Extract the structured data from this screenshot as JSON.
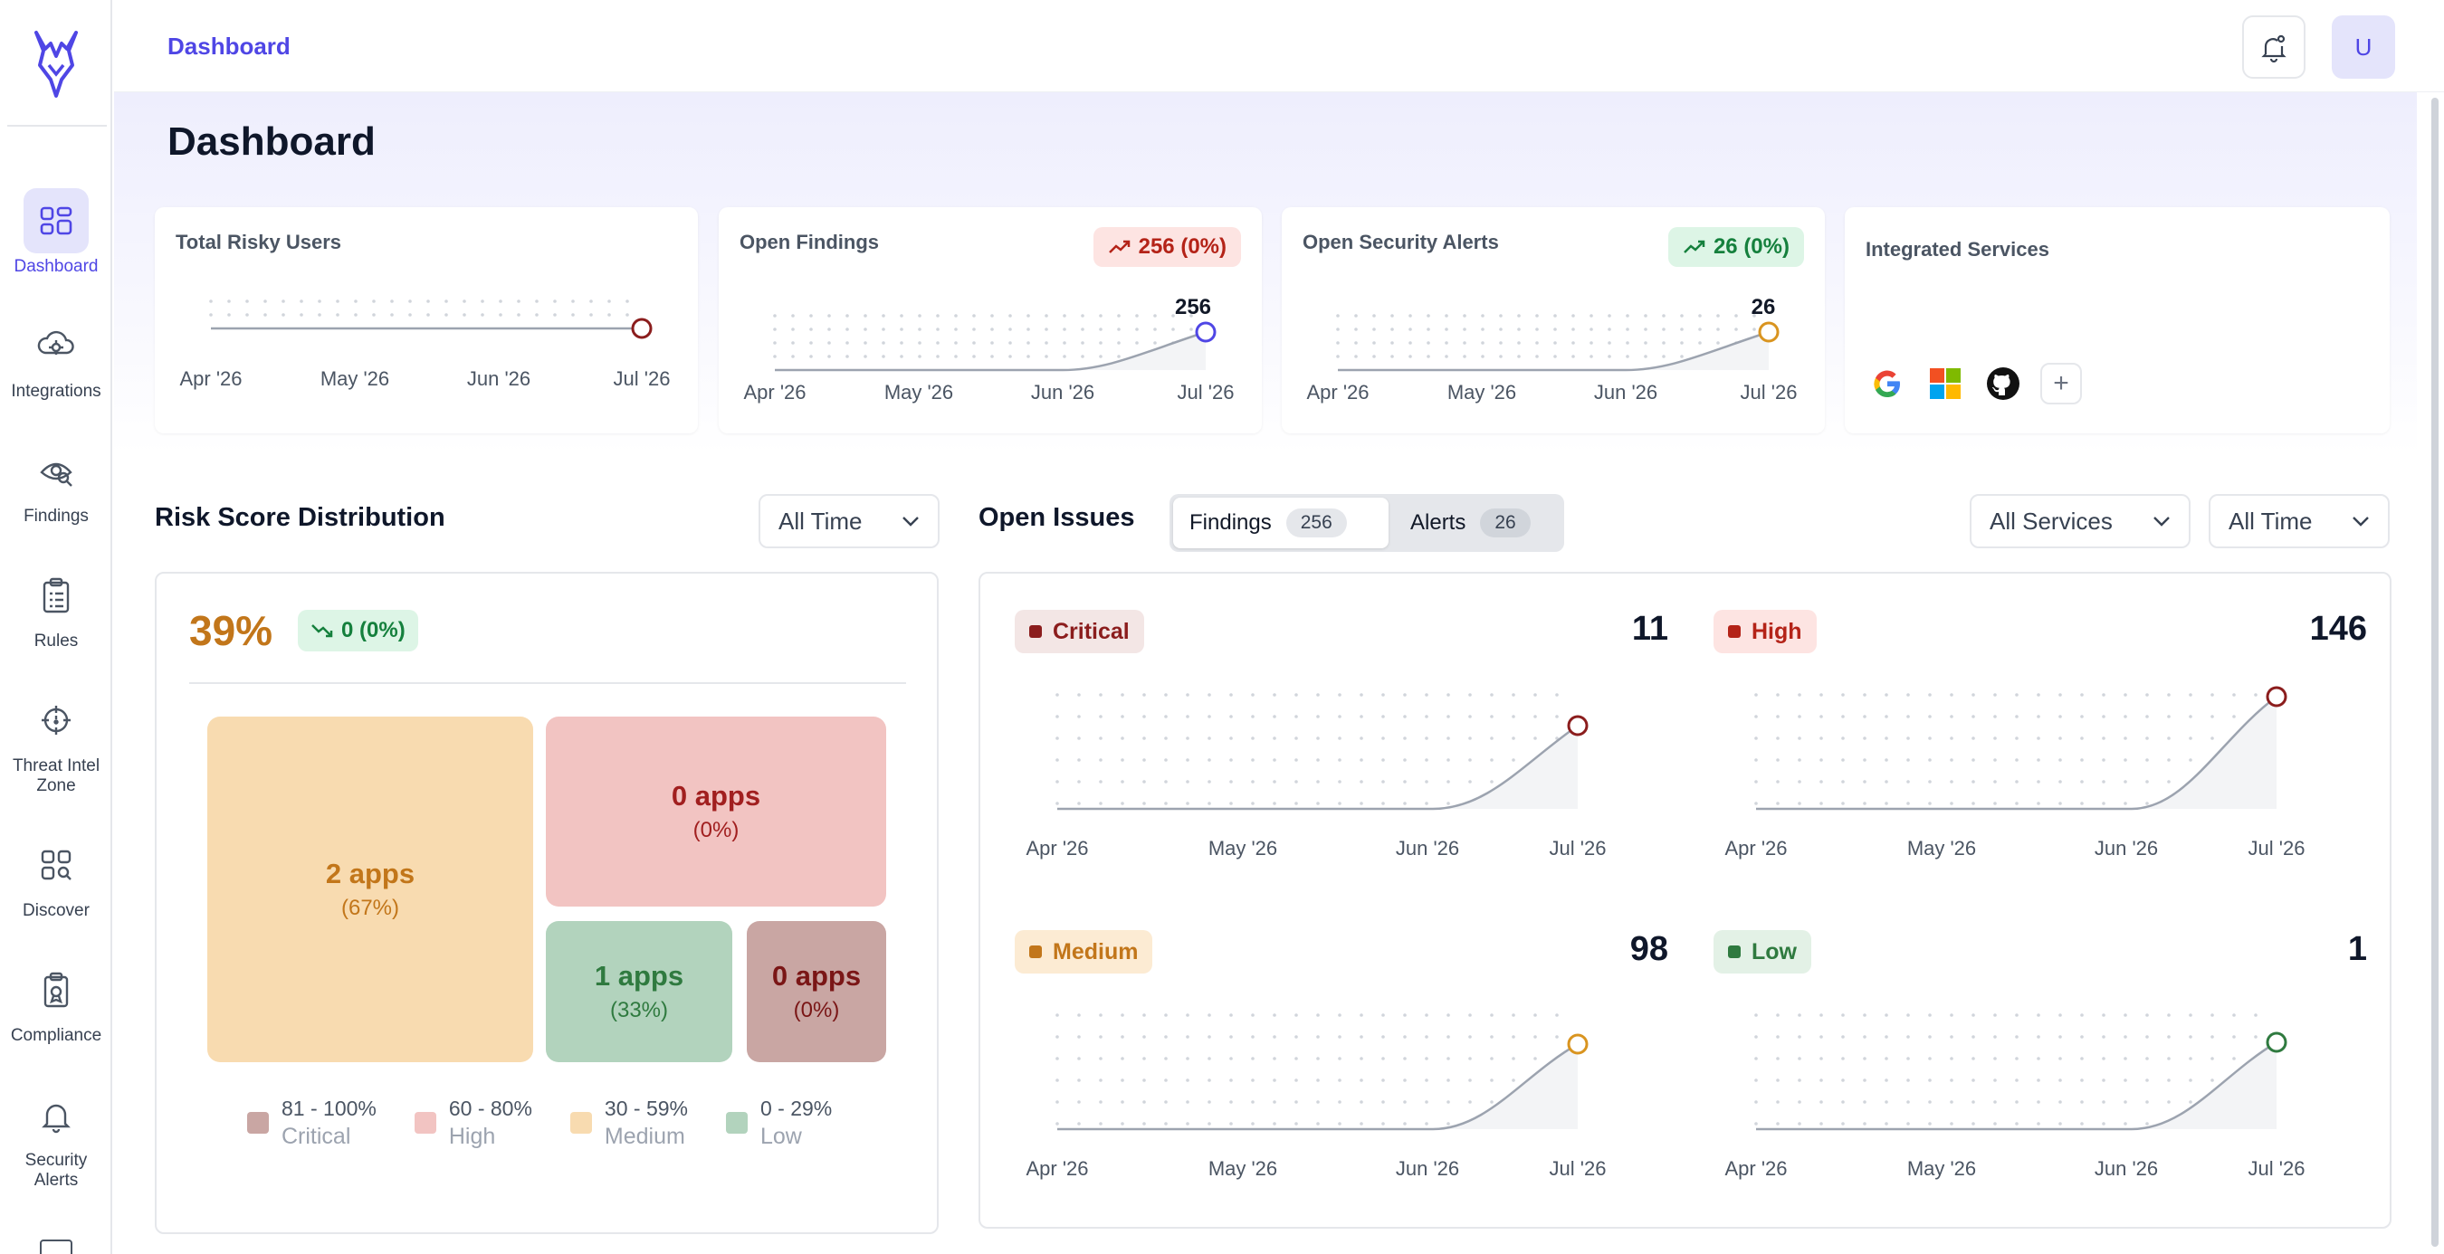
{
  "sidebar": {
    "items": [
      {
        "label": "Dashboard",
        "icon": "dashboard-icon"
      },
      {
        "label": "Integrations",
        "icon": "integrations-icon"
      },
      {
        "label": "Findings",
        "icon": "findings-icon"
      },
      {
        "label": "Rules",
        "icon": "rules-icon"
      },
      {
        "label": "Threat Intel Zone",
        "label_line1": "Threat Intel",
        "label_line2": "Zone",
        "icon": "crosshair-icon"
      },
      {
        "label": "Discover",
        "icon": "discover-icon"
      },
      {
        "label": "Compliance",
        "icon": "compliance-icon"
      },
      {
        "label": "Security Alerts",
        "label_line1": "Security",
        "label_line2": "Alerts",
        "icon": "bell-icon"
      }
    ]
  },
  "topbar": {
    "breadcrumb": "Dashboard",
    "avatar_initial": "U"
  },
  "page": {
    "title": "Dashboard"
  },
  "stats": {
    "risky_users": {
      "title": "Total Risky Users",
      "months": [
        "Apr '26",
        "May '26",
        "Jun '26",
        "Jul '26"
      ]
    },
    "open_findings": {
      "title": "Open Findings",
      "badge": "256 (0%)",
      "value_label": "256",
      "months": [
        "Apr '26",
        "May '26",
        "Jun '26",
        "Jul '26"
      ]
    },
    "open_alerts": {
      "title": "Open Security Alerts",
      "badge": "26 (0%)",
      "value_label": "26",
      "months": [
        "Apr '26",
        "May '26",
        "Jun '26",
        "Jul '26"
      ]
    },
    "integrated_services": {
      "title": "Integrated Services",
      "services": [
        "google-icon",
        "microsoft-icon",
        "github-icon",
        "add-icon"
      ]
    }
  },
  "risk_distribution": {
    "title": "Risk Score Distribution",
    "filter": "All Time",
    "score": "39%",
    "change": "0 (0%)",
    "tiles": {
      "medium": {
        "apps": "2 apps",
        "pct": "(67%)"
      },
      "high": {
        "apps": "0 apps",
        "pct": "(0%)"
      },
      "low": {
        "apps": "1 apps",
        "pct": "(33%)"
      },
      "critical": {
        "apps": "0 apps",
        "pct": "(0%)"
      }
    },
    "legend": [
      {
        "range": "81 - 100%",
        "name": "Critical",
        "color": "#c9a6a3"
      },
      {
        "range": "60 - 80%",
        "name": "High",
        "color": "#f2c4c2"
      },
      {
        "range": "30 - 59%",
        "name": "Medium",
        "color": "#f8dbb0"
      },
      {
        "range": "0 - 29%",
        "name": "Low",
        "color": "#b2d3bd"
      }
    ]
  },
  "open_issues": {
    "title": "Open Issues",
    "tabs": [
      {
        "label": "Findings",
        "count": "256"
      },
      {
        "label": "Alerts",
        "count": "26"
      }
    ],
    "service_filter": "All Services",
    "time_filter": "All Time",
    "panels": {
      "critical": {
        "label": "Critical",
        "count": "11",
        "color": "#8b1d1d"
      },
      "high": {
        "label": "High",
        "count": "146",
        "color": "#b42318"
      },
      "medium": {
        "label": "Medium",
        "count": "98",
        "color": "#c2761a"
      },
      "low": {
        "label": "Low",
        "count": "1",
        "color": "#2f7a3f"
      }
    },
    "months": [
      "Apr '26",
      "May '26",
      "Jun '26",
      "Jul '26"
    ]
  },
  "colors": {
    "accent": "#4f46e5",
    "critical": "#8b1d1d",
    "high": "#b42318",
    "medium": "#c2761a",
    "low": "#2f7a3f"
  }
}
